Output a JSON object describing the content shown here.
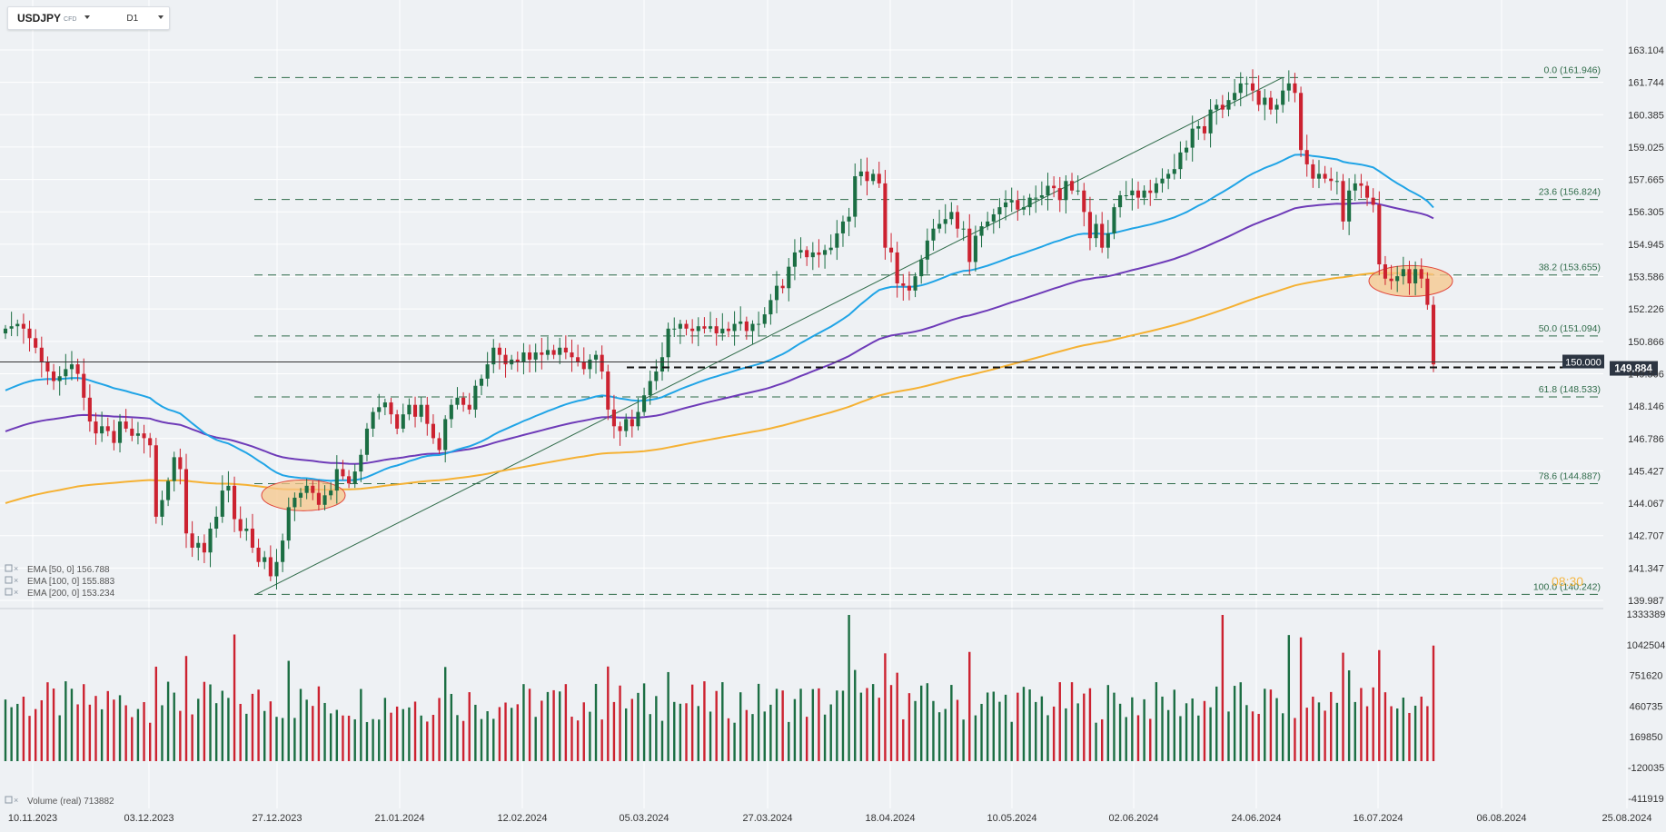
{
  "header": {
    "symbol": "USDJPY",
    "instrument_type": "CFD",
    "timeframe": "D1"
  },
  "colors": {
    "background": "#eef1f4",
    "up": "#1b6e43",
    "down": "#cc2230",
    "ema50": "#20a4e6",
    "ema100": "#6e3bb8",
    "ema200": "#f5b133",
    "fib": "#2f6b49",
    "highlight": "#f5c68a"
  },
  "legend": [
    {
      "label": "EMA  [50,  0]  156.788",
      "color": "#20a4e6"
    },
    {
      "label": "EMA  [100,  0]  155.883",
      "color": "#6e3bb8"
    },
    {
      "label": "EMA  [200,  0]  153.234",
      "color": "#f5b133"
    }
  ],
  "chart_data": {
    "type": "candlestick",
    "x_axis": {
      "ticks": [
        "10.11.2023",
        "03.12.2023",
        "27.12.2023",
        "21.01.2024",
        "12.02.2024",
        "05.03.2024",
        "27.03.2024",
        "18.04.2024",
        "10.05.2024",
        "02.06.2024",
        "24.06.2024",
        "16.07.2024",
        "06.08.2024",
        "25.08.2024"
      ]
    },
    "y_axis": {
      "range": [
        139.4,
        163.7
      ],
      "ticks": [
        "163.104",
        "161.744",
        "160.385",
        "159.025",
        "157.665",
        "156.305",
        "154.945",
        "153.586",
        "152.226",
        "150.866",
        "149.506",
        "148.146",
        "146.786",
        "145.427",
        "144.067",
        "142.707",
        "141.347",
        "139.987"
      ]
    },
    "current_price": "149.884",
    "price_line_label": "150.000",
    "price_line": 150.0,
    "fibonacci": [
      {
        "level": 161.946,
        "label": "0.0 (161.946)"
      },
      {
        "level": 156.824,
        "label": "23.6 (156.824)"
      },
      {
        "level": 153.655,
        "label": "38.2 (153.655)"
      },
      {
        "level": 151.094,
        "label": "50.0 (151.094)"
      },
      {
        "level": 148.533,
        "label": "61.8 (148.533)"
      },
      {
        "level": 144.887,
        "label": "78.6 (144.887)"
      },
      {
        "level": 140.242,
        "label": "100.0 (140.242)"
      }
    ],
    "countdown": "08:30",
    "closes": [
      151.4,
      151.5,
      151.6,
      151.4,
      151.0,
      150.6,
      150.0,
      149.6,
      149.2,
      149.4,
      149.7,
      149.9,
      149.5,
      148.5,
      147.5,
      147.0,
      147.3,
      147.1,
      146.6,
      147.5,
      147.2,
      146.9,
      147.0,
      146.8,
      146.5,
      143.5,
      144.2,
      145.0,
      146.0,
      145.5,
      142.8,
      142.2,
      142.4,
      142.0,
      143.0,
      143.5,
      144.6,
      144.8,
      143.4,
      142.9,
      143.0,
      142.2,
      141.6,
      141.8,
      141.0,
      141.6,
      142.5,
      143.9,
      144.3,
      144.5,
      144.8,
      144.5,
      144.0,
      144.4,
      144.6,
      145.5,
      145.2,
      144.9,
      145.4,
      146.1,
      147.2,
      147.9,
      148.1,
      148.3,
      147.8,
      147.2,
      147.8,
      148.2,
      147.7,
      148.2,
      147.4,
      146.8,
      146.3,
      147.6,
      148.2,
      148.5,
      148.2,
      148.0,
      149.0,
      149.3,
      149.9,
      150.6,
      150.3,
      149.9,
      150.1,
      150.0,
      150.4,
      150.1,
      150.4,
      150.3,
      150.5,
      150.3,
      150.6,
      150.4,
      150.2,
      150.0,
      149.7,
      150.1,
      150.3,
      149.6,
      148.0,
      147.3,
      147.1,
      147.6,
      147.3,
      147.9,
      148.6,
      149.2,
      149.6,
      150.2,
      151.4,
      151.4,
      151.6,
      151.4,
      151.3,
      151.5,
      151.4,
      151.5,
      151.2,
      151.4,
      151.3,
      151.6,
      151.7,
      151.3,
      151.6,
      151.6,
      152.0,
      152.6,
      153.2,
      153.1,
      154.0,
      154.6,
      154.7,
      154.4,
      154.6,
      154.5,
      154.7,
      154.8,
      155.4,
      155.9,
      156.1,
      157.8,
      158.0,
      157.6,
      157.9,
      157.5,
      154.8,
      154.6,
      153.3,
      153.2,
      153.0,
      153.6,
      154.3,
      155.1,
      155.6,
      155.8,
      156.0,
      156.3,
      155.6,
      155.6,
      154.2,
      155.3,
      155.7,
      155.9,
      156.2,
      156.5,
      156.7,
      156.8,
      156.4,
      156.5,
      156.9,
      156.9,
      157.0,
      157.4,
      157.3,
      156.8,
      157.6,
      157.2,
      157.2,
      156.3,
      155.2,
      155.8,
      154.8,
      155.4,
      156.5,
      157.0,
      157.0,
      157.2,
      156.9,
      157.2,
      157.1,
      157.5,
      157.7,
      157.9,
      158.1,
      158.8,
      159.0,
      159.8,
      159.9,
      159.6,
      160.6,
      160.8,
      160.6,
      161.0,
      161.3,
      161.7,
      161.7,
      161.4,
      160.8,
      161.1,
      160.6,
      160.8,
      161.4,
      161.7,
      161.3,
      158.9,
      158.3,
      157.7,
      157.9,
      157.7,
      157.6,
      157.6,
      155.9,
      157.2,
      157.5,
      157.4,
      156.9,
      156.6,
      154.1,
      153.5,
      153.4,
      153.6,
      153.9,
      153.3,
      153.9,
      153.5,
      152.4,
      149.9
    ],
    "volume_axis": {
      "ticks": [
        "1333389",
        "1042504",
        "751620",
        "460735",
        "169850",
        "-120035",
        "-411919"
      ]
    },
    "volume_legend": "Volume  (real)  713882"
  }
}
